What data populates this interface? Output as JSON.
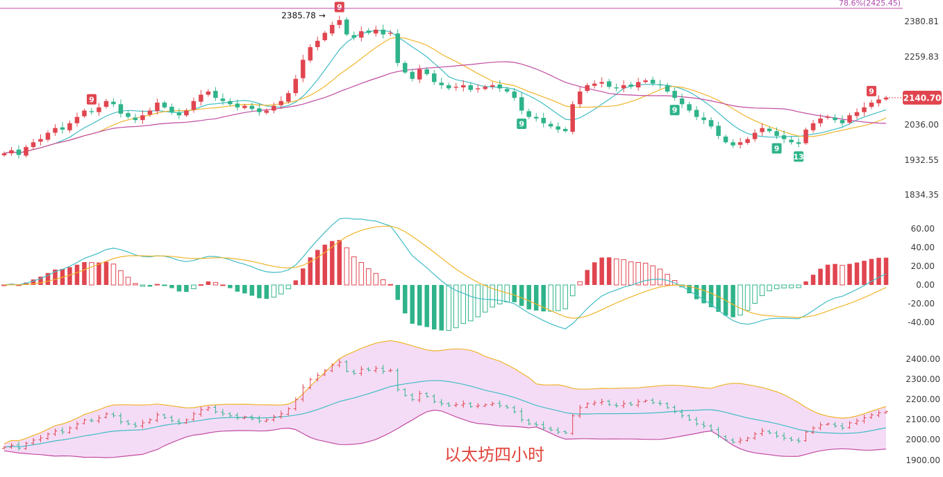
{
  "chart_data": [
    {
      "type": "candlestick",
      "panel": "price",
      "y_ticks": [
        "2380.81",
        "2259.83",
        "2036.00",
        "1932.55",
        "1834.35"
      ],
      "fib_label": "78.6%(2425.45)",
      "peak_label": "2385.78",
      "last_price_label": "2140.70",
      "td_labels": [
        "9",
        "9",
        "9",
        "9",
        "9",
        "13",
        "9"
      ],
      "ohlc_close": [
        1965,
        1975,
        1960,
        1985,
        2000,
        2010,
        2030,
        2045,
        2040,
        2060,
        2080,
        2100,
        2095,
        2110,
        2130,
        2120,
        2090,
        2080,
        2070,
        2085,
        2100,
        2125,
        2110,
        2095,
        2085,
        2100,
        2130,
        2150,
        2160,
        2140,
        2130,
        2120,
        2110,
        2115,
        2105,
        2095,
        2100,
        2115,
        2130,
        2155,
        2200,
        2260,
        2300,
        2320,
        2345,
        2370,
        2385,
        2340,
        2330,
        2350,
        2345,
        2355,
        2340,
        2345,
        2250,
        2220,
        2200,
        2230,
        2215,
        2190,
        2180,
        2170,
        2175,
        2180,
        2165,
        2170,
        2175,
        2180,
        2170,
        2160,
        2140,
        2100,
        2080,
        2075,
        2060,
        2050,
        2040,
        2035,
        2120,
        2160,
        2180,
        2185,
        2190,
        2175,
        2170,
        2180,
        2175,
        2190,
        2195,
        2185,
        2180,
        2160,
        2140,
        2120,
        2100,
        2080,
        2070,
        2050,
        2020,
        2000,
        1990,
        2000,
        2010,
        2030,
        2045,
        2035,
        2020,
        2010,
        2000,
        1995,
        2040,
        2060,
        2075,
        2080,
        2070,
        2060,
        2085,
        2095,
        2110,
        2125,
        2135,
        2140.7
      ]
    },
    {
      "type": "macd",
      "panel": "macd",
      "y_ticks": [
        "60.00",
        "40.00",
        "20.00",
        "0.00",
        "-20.00",
        "-40.00"
      ],
      "ylim": [
        -60,
        70
      ]
    },
    {
      "type": "bollinger",
      "panel": "bollinger",
      "y_ticks": [
        "2400.00",
        "2300.00",
        "2200.00",
        "2100.00",
        "2000.00",
        "1900.00"
      ],
      "ylim": [
        1890,
        2450
      ]
    }
  ],
  "caption": "以太坊四小时",
  "colors": {
    "up": "#e0454f",
    "down": "#2fb38a",
    "ma_cyan": "#3fbcc4",
    "ma_orange": "#f0b429",
    "ma_magenta": "#c04aa0",
    "band_fill": "#f5dcf6"
  }
}
